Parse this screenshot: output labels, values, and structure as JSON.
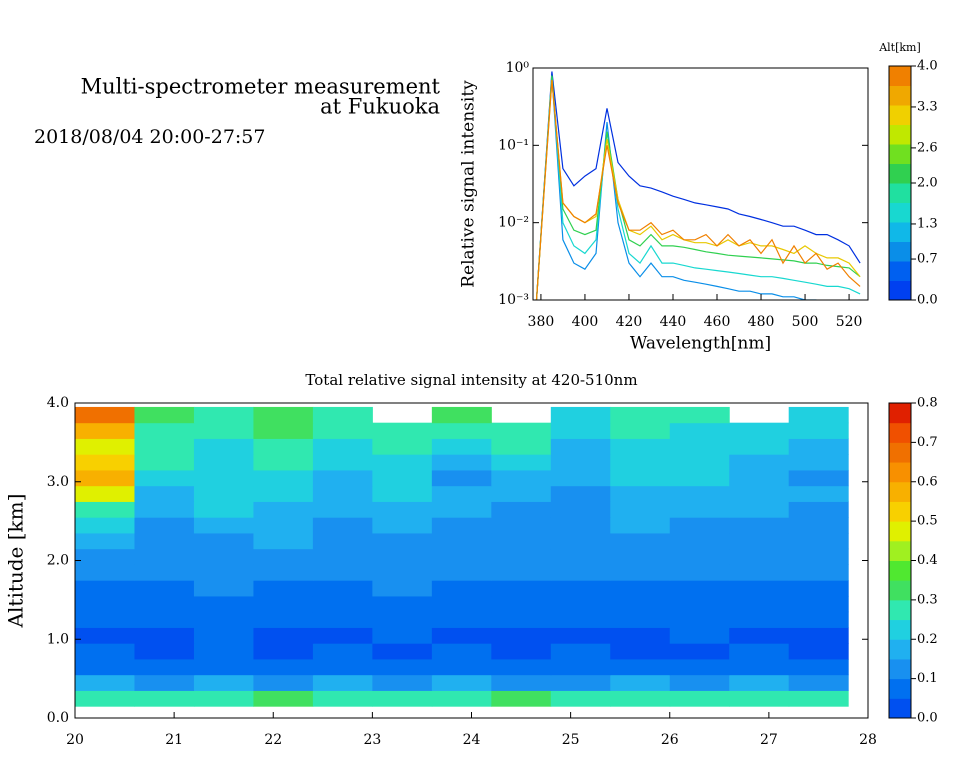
{
  "header": {
    "title_lines": [
      "Multi-spectrometer measurement",
      "at Fukuoka"
    ],
    "date": "2018/08/04 20:00-27:57"
  },
  "chart_data": [
    {
      "type": "line",
      "ylabel": "Relative signal intensity",
      "xlabel": "Wavelength[nm]",
      "x": [
        378,
        385,
        390,
        395,
        400,
        405,
        410,
        415,
        420,
        425,
        430,
        435,
        440,
        445,
        450,
        455,
        460,
        465,
        470,
        475,
        480,
        485,
        490,
        495,
        500,
        505,
        510,
        515,
        520,
        525
      ],
      "xlim": [
        376.4,
        528.6
      ],
      "xticks": [
        380,
        400,
        420,
        440,
        460,
        480,
        500,
        520
      ],
      "ylim": [
        0.001,
        1
      ],
      "log_y": true,
      "yticks": [
        {
          "value": 0.001,
          "label": "10⁻³"
        },
        {
          "value": 0.01,
          "label": "10⁻²"
        },
        {
          "value": 0.1,
          "label": "10⁻¹"
        },
        {
          "value": 1,
          "label": "10⁰"
        }
      ],
      "series": [
        {
          "color": "#0030e0",
          "values": [
            0.001,
            0.9,
            0.05,
            0.03,
            0.04,
            0.05,
            0.3,
            0.06,
            0.04,
            0.03,
            0.028,
            0.025,
            0.022,
            0.02,
            0.018,
            0.017,
            0.016,
            0.015,
            0.013,
            0.012,
            0.011,
            0.01,
            0.009,
            0.009,
            0.008,
            0.007,
            0.007,
            0.006,
            0.005,
            0.003
          ]
        },
        {
          "color": "#0a8ee8",
          "values": [
            0.001,
            0.8,
            0.006,
            0.003,
            0.0025,
            0.004,
            0.2,
            0.01,
            0.003,
            0.002,
            0.003,
            0.002,
            0.002,
            0.0018,
            0.0017,
            0.0016,
            0.0015,
            0.0014,
            0.0013,
            0.0013,
            0.0012,
            0.0012,
            0.0011,
            0.0011,
            0.001,
            0.001,
            0.0009,
            0.0009,
            0.0009,
            0.0008
          ]
        },
        {
          "color": "#18d8d0",
          "values": [
            0.001,
            0.8,
            0.01,
            0.005,
            0.004,
            0.006,
            0.15,
            0.015,
            0.004,
            0.003,
            0.005,
            0.003,
            0.003,
            0.0028,
            0.0026,
            0.0025,
            0.0024,
            0.0023,
            0.0022,
            0.0021,
            0.002,
            0.002,
            0.0019,
            0.0018,
            0.0017,
            0.0016,
            0.0015,
            0.0015,
            0.0014,
            0.0012
          ]
        },
        {
          "color": "#30d050",
          "values": [
            0.001,
            0.8,
            0.015,
            0.008,
            0.007,
            0.008,
            0.15,
            0.02,
            0.006,
            0.005,
            0.007,
            0.005,
            0.005,
            0.0048,
            0.0045,
            0.0042,
            0.004,
            0.0038,
            0.0037,
            0.0036,
            0.0035,
            0.0034,
            0.0033,
            0.0032,
            0.003,
            0.003,
            0.0028,
            0.0027,
            0.0026,
            0.002
          ]
        },
        {
          "color": "#e8c800",
          "values": [
            0.001,
            0.7,
            0.018,
            0.012,
            0.01,
            0.012,
            0.12,
            0.02,
            0.008,
            0.007,
            0.009,
            0.006,
            0.007,
            0.006,
            0.0055,
            0.0055,
            0.005,
            0.006,
            0.005,
            0.0055,
            0.005,
            0.005,
            0.0045,
            0.004,
            0.005,
            0.004,
            0.0035,
            0.0035,
            0.003,
            0.002
          ]
        },
        {
          "color": "#f08000",
          "values": [
            0.001,
            0.7,
            0.018,
            0.012,
            0.01,
            0.013,
            0.1,
            0.018,
            0.008,
            0.008,
            0.01,
            0.007,
            0.008,
            0.006,
            0.006,
            0.007,
            0.005,
            0.007,
            0.005,
            0.006,
            0.004,
            0.006,
            0.003,
            0.005,
            0.003,
            0.004,
            0.0025,
            0.003,
            0.002,
            0.0015
          ]
        }
      ],
      "colorbar": {
        "title": "Alt[km]",
        "lim": [
          0,
          4
        ],
        "ticks": [
          {
            "value": 0,
            "label": "0.0"
          },
          0.7,
          1.3,
          {
            "value": 2,
            "label": "2.0"
          },
          2.6,
          3.3,
          {
            "value": 4,
            "label": "4.0"
          }
        ],
        "colors": [
          "#0040f0",
          "#0060f0",
          "#0a8ee8",
          "#10b8e8",
          "#18d8d0",
          "#20e0a0",
          "#30d050",
          "#70e020",
          "#c0e800",
          "#f0d000",
          "#f0a800",
          "#f08000"
        ]
      }
    },
    {
      "type": "heatmap",
      "title": "Total relative signal intensity at 420-510nm",
      "ylabel": "Altitude [km]",
      "x": [
        20.3,
        20.9,
        21.5,
        22.1,
        22.7,
        23.3,
        23.9,
        24.5,
        25.1,
        25.7,
        26.3,
        26.9,
        27.5
      ],
      "y": [
        0.25,
        0.45,
        0.65,
        0.85,
        1.05,
        1.25,
        1.45,
        1.65,
        1.85,
        2.05,
        2.25,
        2.45,
        2.65,
        2.85,
        3.05,
        3.25,
        3.45,
        3.65,
        3.85
      ],
      "z": [
        [
          0.3,
          0.28,
          0.3,
          0.32,
          0.3,
          0.28,
          0.3,
          0.32,
          0.28,
          0.3,
          0.3,
          0.28,
          0.3
        ],
        [
          0.16,
          0.15,
          0.16,
          0.15,
          0.17,
          0.15,
          0.16,
          0.15,
          0.15,
          0.16,
          0.15,
          0.16,
          0.15
        ],
        [
          0.08,
          0.07,
          0.08,
          0.08,
          0.07,
          0.08,
          0.07,
          0.08,
          0.07,
          0.07,
          0.08,
          0.07,
          0.08
        ],
        [
          0.05,
          0.04,
          0.05,
          0.04,
          0.05,
          0.04,
          0.05,
          0.04,
          0.05,
          0.04,
          0.04,
          0.05,
          0.04
        ],
        [
          0.04,
          0.04,
          0.05,
          0.04,
          0.04,
          0.05,
          0.04,
          0.04,
          0.04,
          0.04,
          0.05,
          0.04,
          0.04
        ],
        [
          0.05,
          0.05,
          0.06,
          0.05,
          0.05,
          0.06,
          0.05,
          0.05,
          0.05,
          0.05,
          0.06,
          0.05,
          0.05
        ],
        [
          0.07,
          0.06,
          0.08,
          0.07,
          0.06,
          0.07,
          0.06,
          0.07,
          0.06,
          0.06,
          0.07,
          0.06,
          0.07
        ],
        [
          0.09,
          0.08,
          0.1,
          0.09,
          0.08,
          0.1,
          0.09,
          0.08,
          0.08,
          0.09,
          0.08,
          0.09,
          0.08
        ],
        [
          0.11,
          0.1,
          0.12,
          0.11,
          0.1,
          0.12,
          0.11,
          0.1,
          0.1,
          0.11,
          0.1,
          0.11,
          0.1
        ],
        [
          0.14,
          0.12,
          0.14,
          0.13,
          0.12,
          0.14,
          0.13,
          0.12,
          0.11,
          0.13,
          0.12,
          0.13,
          0.12
        ],
        [
          0.18,
          0.13,
          0.15,
          0.16,
          0.13,
          0.15,
          0.14,
          0.13,
          0.12,
          0.15,
          0.13,
          0.14,
          0.13
        ],
        [
          0.22,
          0.15,
          0.17,
          0.18,
          0.14,
          0.17,
          0.15,
          0.14,
          0.13,
          0.16,
          0.14,
          0.15,
          0.14
        ],
        [
          0.3,
          0.17,
          0.2,
          0.19,
          0.16,
          0.18,
          0.17,
          0.15,
          0.14,
          0.18,
          0.16,
          0.17,
          0.15
        ],
        [
          0.45,
          0.18,
          0.22,
          0.2,
          0.17,
          0.2,
          0.16,
          0.16,
          0.15,
          0.19,
          0.18,
          0.18,
          0.16
        ],
        [
          0.6,
          0.2,
          0.24,
          0.22,
          0.16,
          0.22,
          0.15,
          0.18,
          0.16,
          0.2,
          0.2,
          0.17,
          0.15
        ],
        [
          0.5,
          0.26,
          0.22,
          0.25,
          0.2,
          0.24,
          0.18,
          0.2,
          0.17,
          0.22,
          0.23,
          0.18,
          0.17
        ],
        [
          0.45,
          0.3,
          0.24,
          0.28,
          0.22,
          0.26,
          0.22,
          0.25,
          0.19,
          0.24,
          0.22,
          0.2,
          0.18
        ],
        [
          0.55,
          0.28,
          0.3,
          0.32,
          0.25,
          0.3,
          0.28,
          0.26,
          0.2,
          0.25,
          0.24,
          0.22,
          0.2
        ],
        [
          0.65,
          0.33,
          0.3,
          0.35,
          0.3,
          null,
          0.32,
          null,
          0.24,
          0.28,
          0.26,
          null,
          0.2
        ]
      ],
      "xlim": [
        20,
        28
      ],
      "xticks": [
        20,
        21,
        22,
        23,
        24,
        25,
        26,
        27,
        28
      ],
      "ylim": [
        0,
        4
      ],
      "yticks": [
        {
          "value": 0,
          "label": "0.0"
        },
        {
          "value": 1,
          "label": "1.0"
        },
        {
          "value": 2,
          "label": "2.0"
        },
        {
          "value": 3,
          "label": "3.0"
        },
        {
          "value": 4,
          "label": "4.0"
        }
      ],
      "colorbar": {
        "lim": [
          0,
          0.8
        ],
        "ticks": [
          {
            "value": 0,
            "label": "0.0"
          },
          0.1,
          0.2,
          0.3,
          0.4,
          0.5,
          0.6,
          0.7,
          0.8
        ],
        "colors": [
          "#0050f0",
          "#0070f0",
          "#1890f0",
          "#20b0f0",
          "#20d0e0",
          "#30e8b0",
          "#40e060",
          "#50e830",
          "#a0f020",
          "#e0f000",
          "#f8d000",
          "#f8b000",
          "#f89000",
          "#f07000",
          "#f05000",
          "#e02000"
        ]
      }
    }
  ]
}
